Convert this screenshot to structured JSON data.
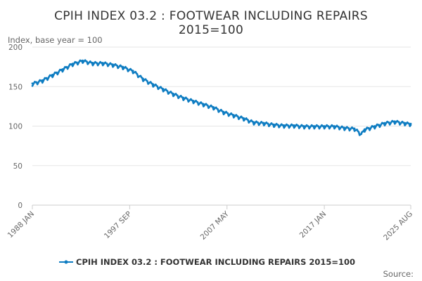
{
  "chart_data": {
    "type": "line",
    "title_line1": "CPIH INDEX 03.2 : FOOTWEAR INCLUDING REPAIRS",
    "title_line2": "2015=100",
    "ylabel": "Index, base year = 100",
    "ylim": [
      0,
      200
    ],
    "yticks": [
      0,
      50,
      100,
      150,
      200
    ],
    "xlim": [
      "1988 JAN",
      "2025 AUG"
    ],
    "xticks": [
      "1988 JAN",
      "1997 SEP",
      "2007 MAY",
      "2017 JAN",
      "2025 AUG"
    ],
    "grid": true,
    "legend_position": "bottom",
    "series": [
      {
        "name": "CPIH INDEX 03.2 : FOOTWEAR INCLUDING REPAIRS 2015=100",
        "color": "#0f7dc2",
        "points": [
          [
            "1988-01",
            154
          ],
          [
            "1989-01",
            158
          ],
          [
            "1990-01",
            165
          ],
          [
            "1991-01",
            172
          ],
          [
            "1992-01",
            179
          ],
          [
            "1993-01",
            183
          ],
          [
            "1994-01",
            180
          ],
          [
            "1995-01",
            180
          ],
          [
            "1996-01",
            178
          ],
          [
            "1997-01",
            175
          ],
          [
            "1998-01",
            170
          ],
          [
            "1999-01",
            160
          ],
          [
            "2000-01",
            153
          ],
          [
            "2001-01",
            147
          ],
          [
            "2002-01",
            141
          ],
          [
            "2003-01",
            136
          ],
          [
            "2004-01",
            132
          ],
          [
            "2005-01",
            128
          ],
          [
            "2006-01",
            124
          ],
          [
            "2007-01",
            118
          ],
          [
            "2008-01",
            114
          ],
          [
            "2009-01",
            110
          ],
          [
            "2010-01",
            105
          ],
          [
            "2011-01",
            104
          ],
          [
            "2012-01",
            102
          ],
          [
            "2013-01",
            101
          ],
          [
            "2014-01",
            101
          ],
          [
            "2015-01",
            100
          ],
          [
            "2016-01",
            100
          ],
          [
            "2017-01",
            100
          ],
          [
            "2018-01",
            100
          ],
          [
            "2019-01",
            98
          ],
          [
            "2020-01",
            97
          ],
          [
            "2020-09",
            90
          ],
          [
            "2021-01",
            96
          ],
          [
            "2022-01",
            100
          ],
          [
            "2023-01",
            104
          ],
          [
            "2024-01",
            106
          ],
          [
            "2025-01",
            104
          ],
          [
            "2025-08",
            103
          ]
        ]
      }
    ]
  },
  "source_label": "Source:"
}
